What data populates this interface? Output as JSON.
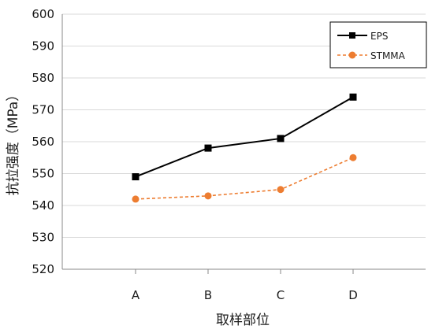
{
  "chart_data": {
    "type": "line",
    "categories": [
      "A",
      "B",
      "C",
      "D"
    ],
    "series": [
      {
        "name": "EPS",
        "values": [
          549,
          558,
          561,
          574
        ],
        "color": "#000000",
        "marker": "square",
        "line_style": "solid"
      },
      {
        "name": "STMMA",
        "values": [
          542,
          543,
          545,
          555
        ],
        "color": "#ED7D31",
        "marker": "circle",
        "line_style": "dashed"
      }
    ],
    "xlabel": "取样部位",
    "ylabel": "抗拉强度（MPa）",
    "ylim": [
      520,
      600
    ],
    "yticks": [
      520,
      530,
      540,
      550,
      560,
      570,
      580,
      590,
      600
    ],
    "grid": "horizontal",
    "legend_position": "top-right"
  }
}
